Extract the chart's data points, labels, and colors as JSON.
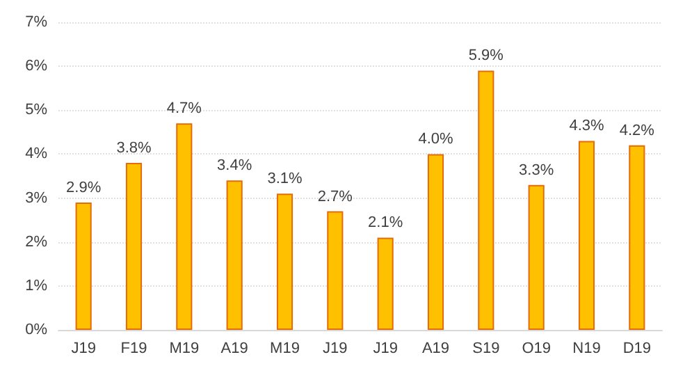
{
  "chart_data": {
    "type": "bar",
    "categories": [
      "J19",
      "F19",
      "M19",
      "A19",
      "M19",
      "J19",
      "J19",
      "A19",
      "S19",
      "O19",
      "N19",
      "D19"
    ],
    "values": [
      2.9,
      3.8,
      4.7,
      3.4,
      3.1,
      2.7,
      2.1,
      4.0,
      5.9,
      3.3,
      4.3,
      4.2
    ],
    "value_labels": [
      "2.9%",
      "3.8%",
      "4.7%",
      "3.4%",
      "3.1%",
      "2.7%",
      "2.1%",
      "4.0%",
      "5.9%",
      "3.3%",
      "4.3%",
      "4.2%"
    ],
    "color": "#ffc000",
    "ylim": [
      0,
      7
    ],
    "yticks": [
      {
        "value": 0,
        "label": "0%"
      },
      {
        "value": 1,
        "label": "1%"
      },
      {
        "value": 2,
        "label": "2%"
      },
      {
        "value": 3,
        "label": "3%"
      },
      {
        "value": 4,
        "label": "4%"
      },
      {
        "value": 5,
        "label": "5%"
      },
      {
        "value": 6,
        "label": "6%"
      },
      {
        "value": 7,
        "label": "7%"
      }
    ],
    "grid": "y"
  }
}
